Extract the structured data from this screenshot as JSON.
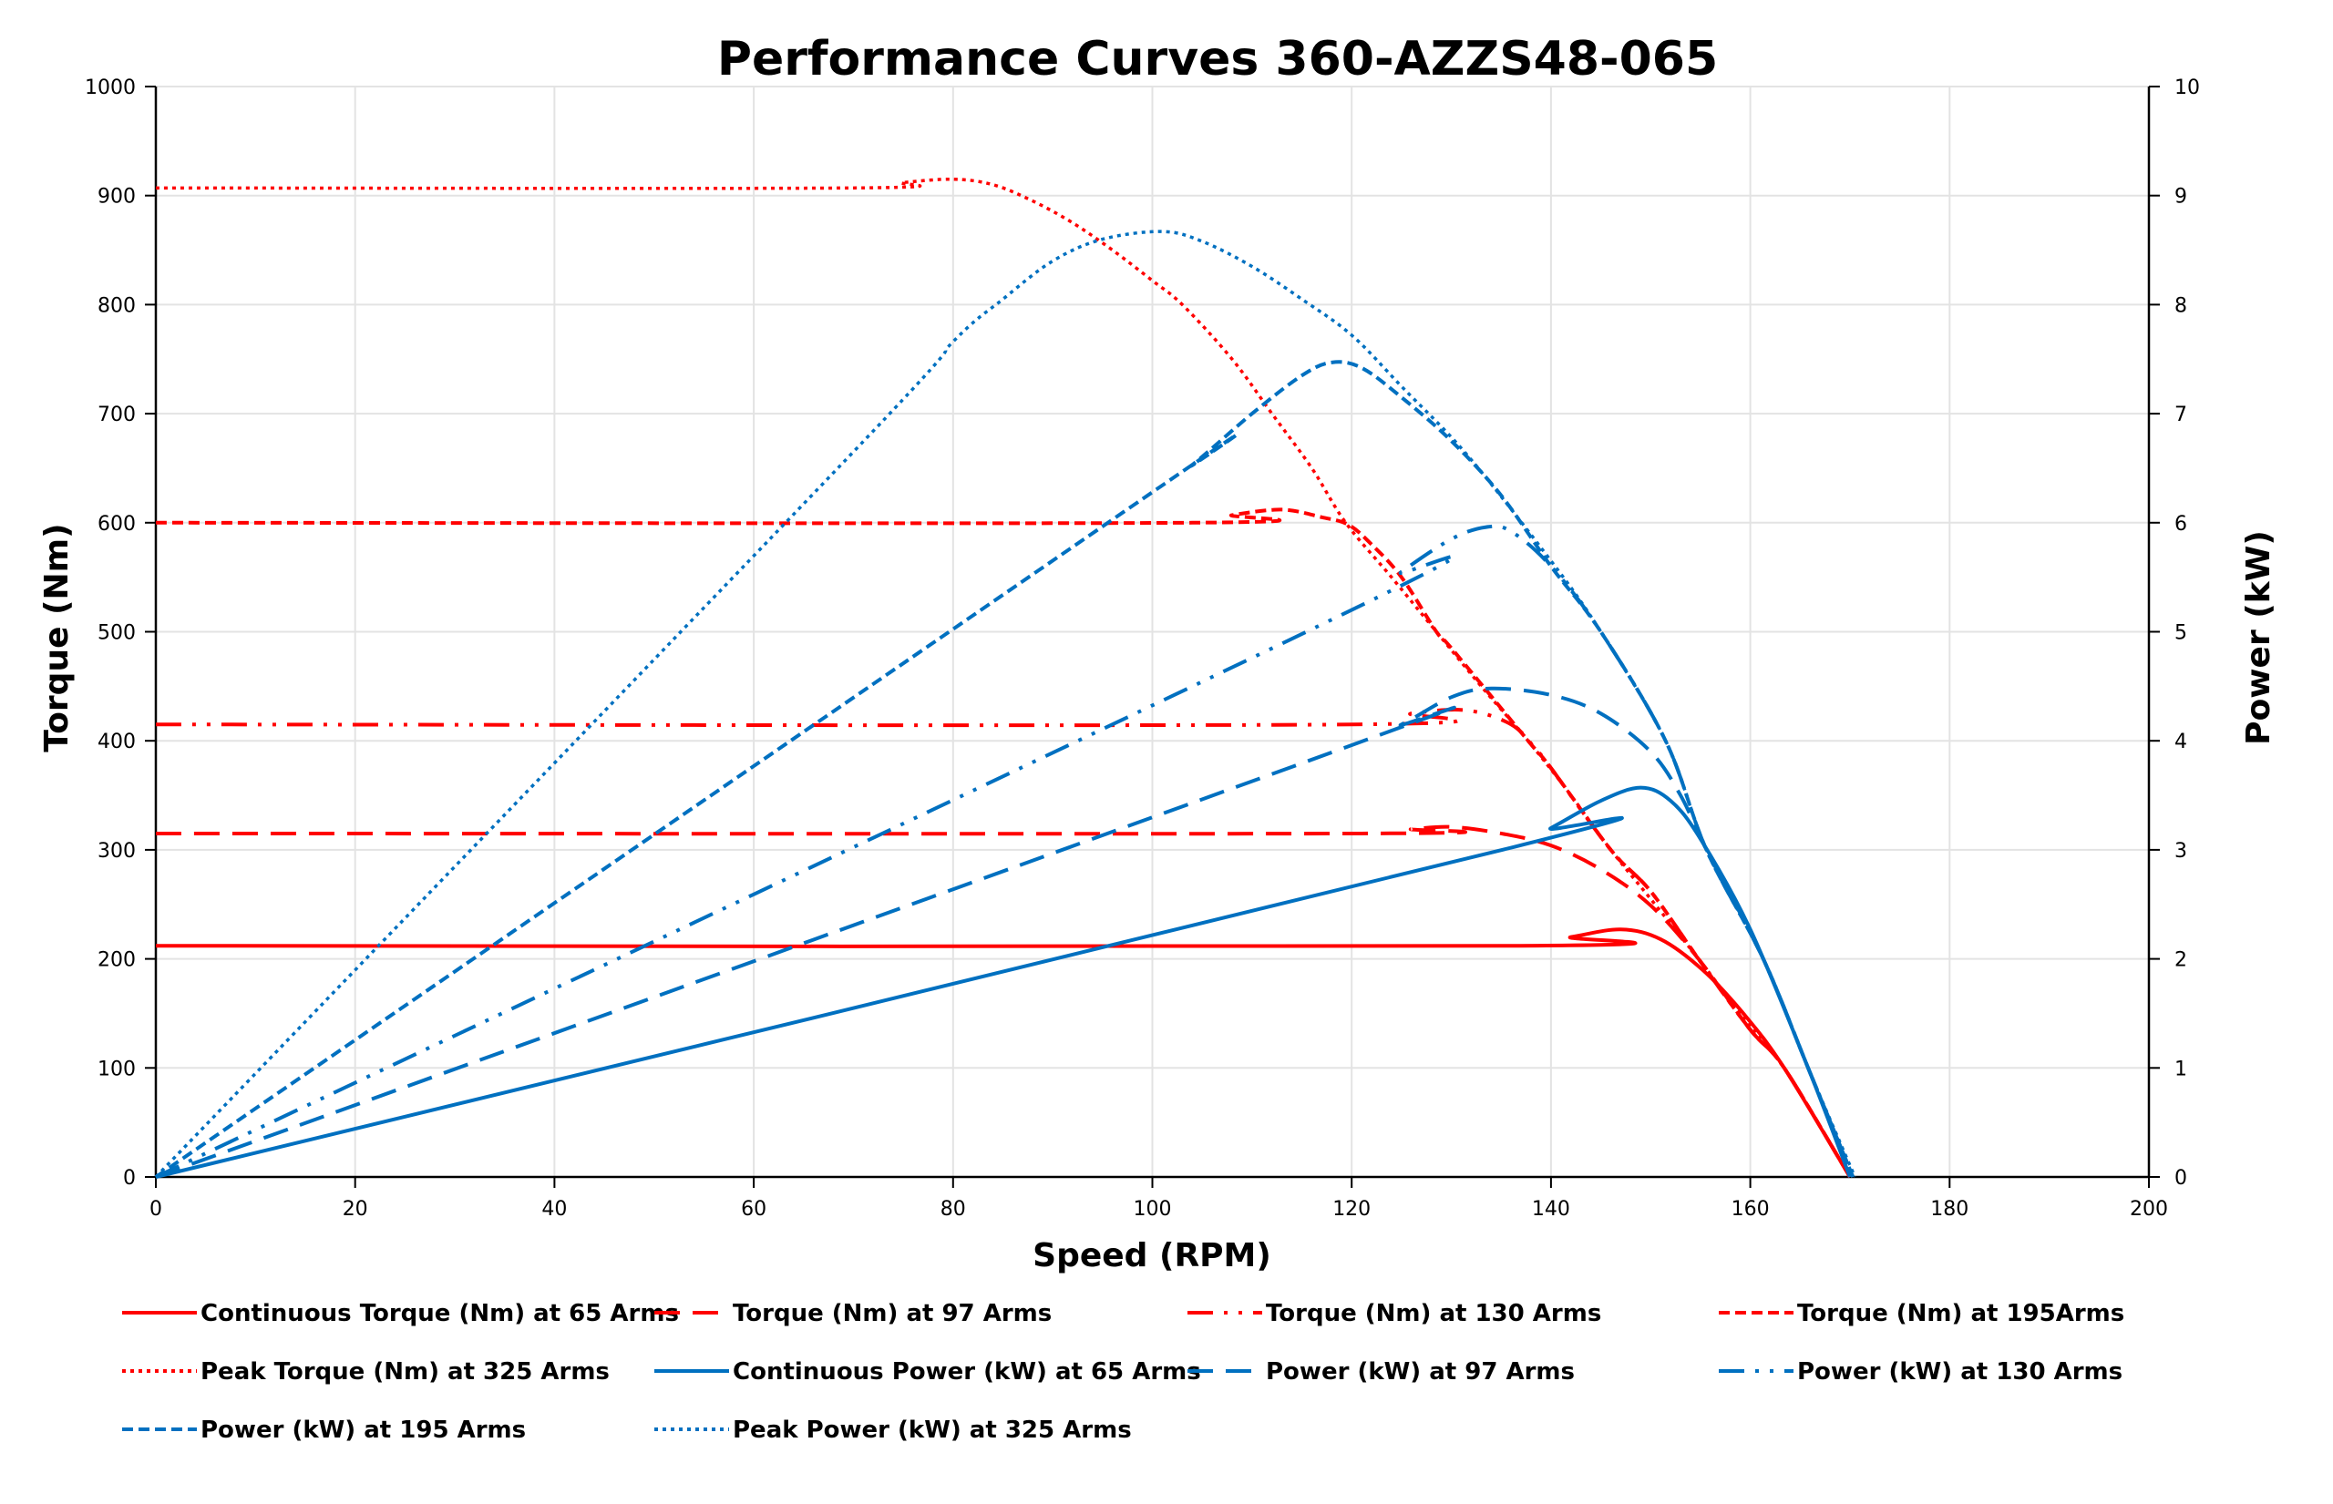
{
  "chart_data": {
    "type": "line",
    "title": "Performance Curves 360-AZZS48-065",
    "xlabel": "Speed (RPM)",
    "ylabel": "Torque (Nm)",
    "y2label": "Power (kW)",
    "xlim": [
      0,
      200
    ],
    "ylim": [
      0,
      1000
    ],
    "y2lim": [
      0,
      10
    ],
    "xticks": [
      0,
      20,
      40,
      60,
      80,
      100,
      120,
      140,
      160,
      180,
      200
    ],
    "yticks": [
      0,
      100,
      200,
      300,
      400,
      500,
      600,
      700,
      800,
      900,
      1000
    ],
    "y2ticks": [
      0,
      1,
      2,
      3,
      4,
      5,
      6,
      7,
      8,
      9,
      10
    ],
    "grid": true,
    "legend_position": "bottom",
    "colors": {
      "torque": "#ff0000",
      "power": "#0070c0"
    },
    "series": [
      {
        "name": "Continuous Torque (Nm) at 65 Arms",
        "axis": "left",
        "color": "#ff0000",
        "style": "solid",
        "points": [
          [
            0,
            212
          ],
          [
            136.9,
            212
          ],
          [
            142,
            220
          ],
          [
            147,
            227
          ],
          [
            151,
            218
          ],
          [
            155.2,
            190
          ],
          [
            159.3,
            150
          ],
          [
            163.4,
            100
          ],
          [
            170,
            0
          ]
        ]
      },
      {
        "name": "Torque (Nm) at 97 Arms",
        "axis": "left",
        "color": "#ff0000",
        "style": "dash",
        "points": [
          [
            0,
            315
          ],
          [
            121,
            315
          ],
          [
            126,
            319
          ],
          [
            130,
            321
          ],
          [
            135,
            315
          ],
          [
            140,
            304
          ],
          [
            145,
            282
          ],
          [
            150,
            249
          ],
          [
            154.8,
            200
          ],
          [
            160,
            135
          ],
          [
            163.4,
            100
          ],
          [
            170,
            0
          ]
        ]
      },
      {
        "name": "Torque (Nm) at 130 Arms",
        "axis": "left",
        "color": "#ff0000",
        "style": "dashdotdot",
        "points": [
          [
            0,
            415
          ],
          [
            120,
            415
          ],
          [
            126,
            425
          ],
          [
            131.5,
            428
          ],
          [
            136,
            415
          ],
          [
            138.5,
            392
          ],
          [
            140,
            375
          ],
          [
            146,
            300
          ],
          [
            150,
            262
          ],
          [
            154.8,
            200
          ],
          [
            160,
            135
          ],
          [
            163.4,
            100
          ],
          [
            170,
            0
          ]
        ]
      },
      {
        "name": "Torque (Nm) at 195Arms",
        "axis": "left",
        "color": "#ff0000",
        "style": "shortdash",
        "points": [
          [
            0,
            600
          ],
          [
            104,
            600
          ],
          [
            108,
            607
          ],
          [
            113,
            612
          ],
          [
            117,
            605
          ],
          [
            119.7,
            598
          ],
          [
            122,
            580
          ],
          [
            125,
            550
          ],
          [
            128.5,
            500
          ],
          [
            130,
            485
          ],
          [
            137.7,
            400
          ],
          [
            140,
            375
          ],
          [
            146,
            300
          ],
          [
            150,
            262
          ],
          [
            154.8,
            200
          ],
          [
            160,
            135
          ],
          [
            163.4,
            100
          ],
          [
            170,
            0
          ]
        ]
      },
      {
        "name": "Peak Torque (Nm) at 325  Arms",
        "axis": "left",
        "color": "#ff0000",
        "style": "dot",
        "points": [
          [
            0,
            907
          ],
          [
            70,
            907
          ],
          [
            75,
            912
          ],
          [
            80,
            915
          ],
          [
            84,
            910
          ],
          [
            88,
            895
          ],
          [
            92,
            875
          ],
          [
            96,
            850
          ],
          [
            100,
            822
          ],
          [
            103,
            800
          ],
          [
            108,
            750
          ],
          [
            112,
            700
          ],
          [
            116,
            650
          ],
          [
            119.4,
            600
          ],
          [
            124,
            550
          ],
          [
            128.5,
            500
          ],
          [
            133,
            450
          ],
          [
            137.7,
            400
          ],
          [
            142,
            350
          ],
          [
            146,
            300
          ],
          [
            150,
            255
          ],
          [
            154.8,
            200
          ],
          [
            159,
            150
          ],
          [
            163.4,
            100
          ],
          [
            170,
            0
          ]
        ]
      },
      {
        "name": "Continuous Power (kW) at 65 Arms",
        "axis": "right",
        "color": "#0070c0",
        "style": "solid",
        "points": [
          [
            0,
            0
          ],
          [
            136,
            3.02
          ],
          [
            140,
            3.2
          ],
          [
            145,
            3.45
          ],
          [
            149,
            3.57
          ],
          [
            152,
            3.45
          ],
          [
            155,
            3.1
          ],
          [
            160,
            2.27
          ],
          [
            165.8,
            1.0
          ],
          [
            170,
            0
          ]
        ]
      },
      {
        "name": "Power (kW) at 97 Arms",
        "axis": "right",
        "color": "#0070c0",
        "style": "dash",
        "points": [
          [
            0,
            0
          ],
          [
            120,
            3.96
          ],
          [
            125,
            4.15
          ],
          [
            130,
            4.4
          ],
          [
            134,
            4.48
          ],
          [
            140,
            4.42
          ],
          [
            145,
            4.25
          ],
          [
            150,
            3.9
          ],
          [
            153,
            3.5
          ],
          [
            155.6,
            3.0
          ],
          [
            161.3,
            2.0
          ],
          [
            165.8,
            1.0
          ],
          [
            170.3,
            0
          ]
        ]
      },
      {
        "name": "Power (kW) at 130 Arms",
        "axis": "right",
        "color": "#0070c0",
        "style": "dashdotdot",
        "points": [
          [
            0,
            0
          ],
          [
            120,
            5.2
          ],
          [
            125,
            5.55
          ],
          [
            130,
            5.85
          ],
          [
            133.5,
            5.96
          ],
          [
            136,
            5.92
          ],
          [
            140,
            5.6
          ],
          [
            145,
            5.0
          ],
          [
            151.5,
            4.0
          ],
          [
            155.6,
            3.0
          ],
          [
            161.3,
            2.0
          ],
          [
            165.8,
            1.0
          ],
          [
            170.3,
            0
          ]
        ]
      },
      {
        "name": "Power (kW) at 195 Arms",
        "axis": "right",
        "color": "#0070c0",
        "style": "shortdash",
        "points": [
          [
            0,
            0
          ],
          [
            100,
            6.28
          ],
          [
            104,
            6.53
          ],
          [
            110,
            7.0
          ],
          [
            115,
            7.35
          ],
          [
            118,
            7.47
          ],
          [
            121,
            7.42
          ],
          [
            125,
            7.15
          ],
          [
            130,
            6.75
          ],
          [
            135,
            6.25
          ],
          [
            140,
            5.6
          ],
          [
            145,
            5.0
          ],
          [
            151.5,
            4.0
          ],
          [
            155.6,
            3.0
          ],
          [
            161.3,
            2.0
          ],
          [
            165.8,
            1.0
          ],
          [
            170.3,
            0
          ]
        ]
      },
      {
        "name": "Peak Power (kW) at 325 Arms",
        "axis": "right",
        "color": "#0070c0",
        "style": "dot",
        "points": [
          [
            0,
            0
          ],
          [
            70,
            6.65
          ],
          [
            80,
            7.66
          ],
          [
            85,
            8.05
          ],
          [
            90,
            8.4
          ],
          [
            95,
            8.6
          ],
          [
            101,
            8.67
          ],
          [
            105,
            8.58
          ],
          [
            110,
            8.35
          ],
          [
            115,
            8.05
          ],
          [
            120,
            7.72
          ],
          [
            125,
            7.25
          ],
          [
            131.6,
            6.62
          ],
          [
            140,
            5.65
          ],
          [
            145,
            5.0
          ],
          [
            151.5,
            4.0
          ],
          [
            155.6,
            3.0
          ],
          [
            161.3,
            2.0
          ],
          [
            165.8,
            1.0
          ],
          [
            170.5,
            0
          ]
        ]
      }
    ]
  }
}
